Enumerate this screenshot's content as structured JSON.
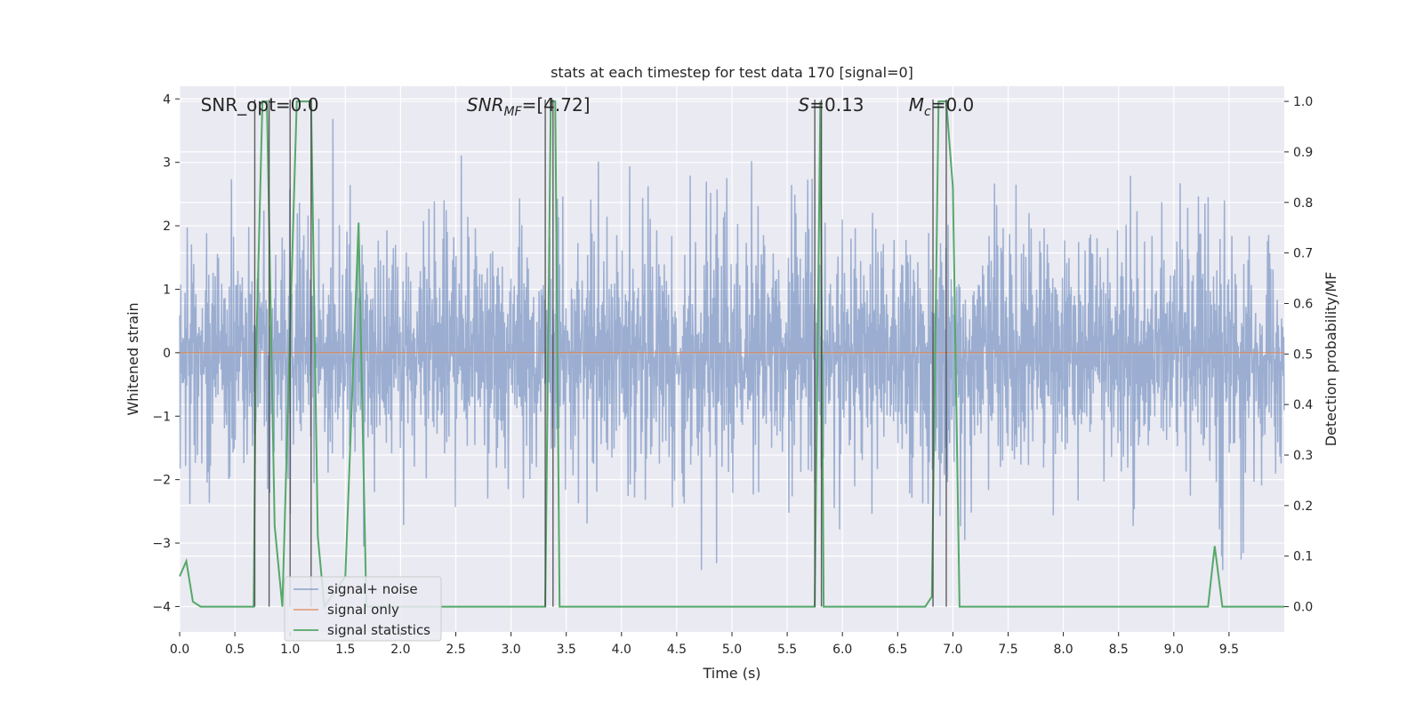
{
  "chart_data": {
    "type": "line",
    "title": "stats at each timestep for test data 170 [signal=0]",
    "xlabel": "Time (s)",
    "ylabel": "Whitened strain",
    "y2label": "Detection probability/MF",
    "xlim": [
      0.0,
      10.0
    ],
    "ylim": [
      -4.4,
      4.2
    ],
    "y2lim": [
      -0.05,
      1.03
    ],
    "x_ticks": [
      "0.0",
      "0.5",
      "1.0",
      "1.5",
      "2.0",
      "2.5",
      "3.0",
      "3.5",
      "4.0",
      "4.5",
      "5.0",
      "5.5",
      "6.0",
      "6.5",
      "7.0",
      "7.5",
      "8.0",
      "8.5",
      "9.0",
      "9.5"
    ],
    "y_ticks": [
      "−4",
      "−3",
      "−2",
      "−1",
      "0",
      "1",
      "2",
      "3",
      "4"
    ],
    "y2_ticks": [
      "0.0",
      "0.1",
      "0.2",
      "0.3",
      "0.4",
      "0.5",
      "0.6",
      "0.7",
      "0.8",
      "0.9",
      "1.0"
    ],
    "grid": true,
    "legend_position": "lower-left",
    "annotations": [
      {
        "text": "SNR_opt=0.0",
        "x": 0.19
      },
      {
        "text": "SNR_MF=[4.72]",
        "x": 2.6
      },
      {
        "text": "S=0.13",
        "x": 5.6
      },
      {
        "text": "M_c=0.0",
        "x": 6.6
      }
    ],
    "markers": [
      0.68,
      0.81,
      1.0,
      1.19,
      3.31,
      3.38,
      5.75,
      5.81,
      6.82,
      6.94
    ],
    "noise_envelope": {
      "typical_amplitude": 1.9,
      "peak_amplitude": 3.6,
      "samples": 2048
    },
    "series": [
      {
        "name": "signal+ noise",
        "axis": "left",
        "color": "#4c72b0",
        "style": "noise"
      },
      {
        "name": "signal only",
        "axis": "left",
        "color": "#dd8452",
        "x": [
          0.0,
          10.0
        ],
        "y": [
          0.0,
          0.0
        ]
      },
      {
        "name": "signal statistics",
        "axis": "right",
        "color": "#55a868",
        "x": [
          0.0,
          0.06,
          0.12,
          0.19,
          0.25,
          0.5,
          0.67,
          0.69,
          0.75,
          0.79,
          0.86,
          0.93,
          1.0,
          1.06,
          1.1,
          1.19,
          1.25,
          1.31,
          1.5,
          1.62,
          1.69,
          1.75,
          3.31,
          3.36,
          3.4,
          3.44,
          3.5,
          5.75,
          5.8,
          5.83,
          5.87,
          6.5,
          6.75,
          6.81,
          6.87,
          6.94,
          7.0,
          7.06,
          7.5,
          9.25,
          9.31,
          9.37,
          9.44,
          9.62,
          10.0
        ],
        "y": [
          0.06,
          0.09,
          0.01,
          0.0,
          0.0,
          0.0,
          0.0,
          0.48,
          1.0,
          1.0,
          0.16,
          0.0,
          0.55,
          1.0,
          1.0,
          1.0,
          0.14,
          0.0,
          0.06,
          0.76,
          0.0,
          0.0,
          0.0,
          1.0,
          1.0,
          0.0,
          0.0,
          0.0,
          1.0,
          0.0,
          0.0,
          0.0,
          0.0,
          0.02,
          1.0,
          1.0,
          0.83,
          0.0,
          0.0,
          0.0,
          0.0,
          0.12,
          0.0,
          0.0,
          0.0
        ]
      }
    ]
  }
}
